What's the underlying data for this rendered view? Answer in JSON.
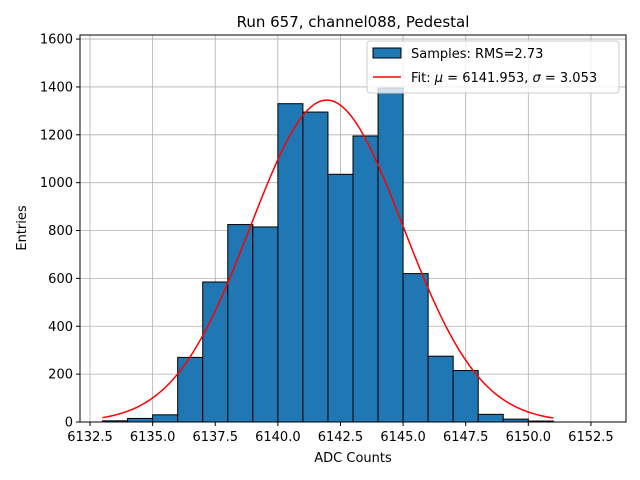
{
  "chart_data": {
    "type": "bar",
    "title": "Run 657, channel088, Pedestal",
    "xlabel": "ADC Counts",
    "ylabel": "Entries",
    "xlim": [
      6132.1,
      6153.9
    ],
    "ylim": [
      0,
      1617
    ],
    "grid": true,
    "x_ticks": [
      6132.5,
      6135.0,
      6137.5,
      6140.0,
      6142.5,
      6145.0,
      6147.5,
      6150.0,
      6152.5
    ],
    "x_tick_labels": [
      "6132.5",
      "6135.0",
      "6137.5",
      "6140.0",
      "6142.5",
      "6145.0",
      "6147.5",
      "6150.0",
      "6152.5"
    ],
    "y_ticks": [
      0,
      200,
      400,
      600,
      800,
      1000,
      1200,
      1400,
      1600
    ],
    "y_tick_labels": [
      "0",
      "200",
      "400",
      "600",
      "800",
      "1000",
      "1200",
      "1400",
      "1600"
    ],
    "histogram": {
      "name": "Samples: RMS=2.73",
      "color": "#1f77b4",
      "edgecolor": "#000000",
      "bin_edges": [
        6133,
        6134,
        6135,
        6136,
        6137,
        6138,
        6139,
        6140,
        6141,
        6142,
        6143,
        6144,
        6145,
        6146,
        6147,
        6148,
        6149,
        6150,
        6151
      ],
      "counts": [
        5,
        15,
        30,
        270,
        585,
        825,
        815,
        1330,
        1295,
        1035,
        1195,
        1395,
        620,
        275,
        215,
        32,
        12,
        4
      ]
    },
    "fit": {
      "name_prefix": "Fit: ",
      "mu_symbol": "μ",
      "sigma_symbol": "σ",
      "mu_text": " = 6141.953, ",
      "sigma_text": " = 3.053",
      "color": "#ff0000",
      "mu": 6141.953,
      "sigma": 3.053,
      "amplitude": 1345,
      "x_range": [
        6133,
        6151
      ]
    },
    "legend_position": "top-right"
  }
}
